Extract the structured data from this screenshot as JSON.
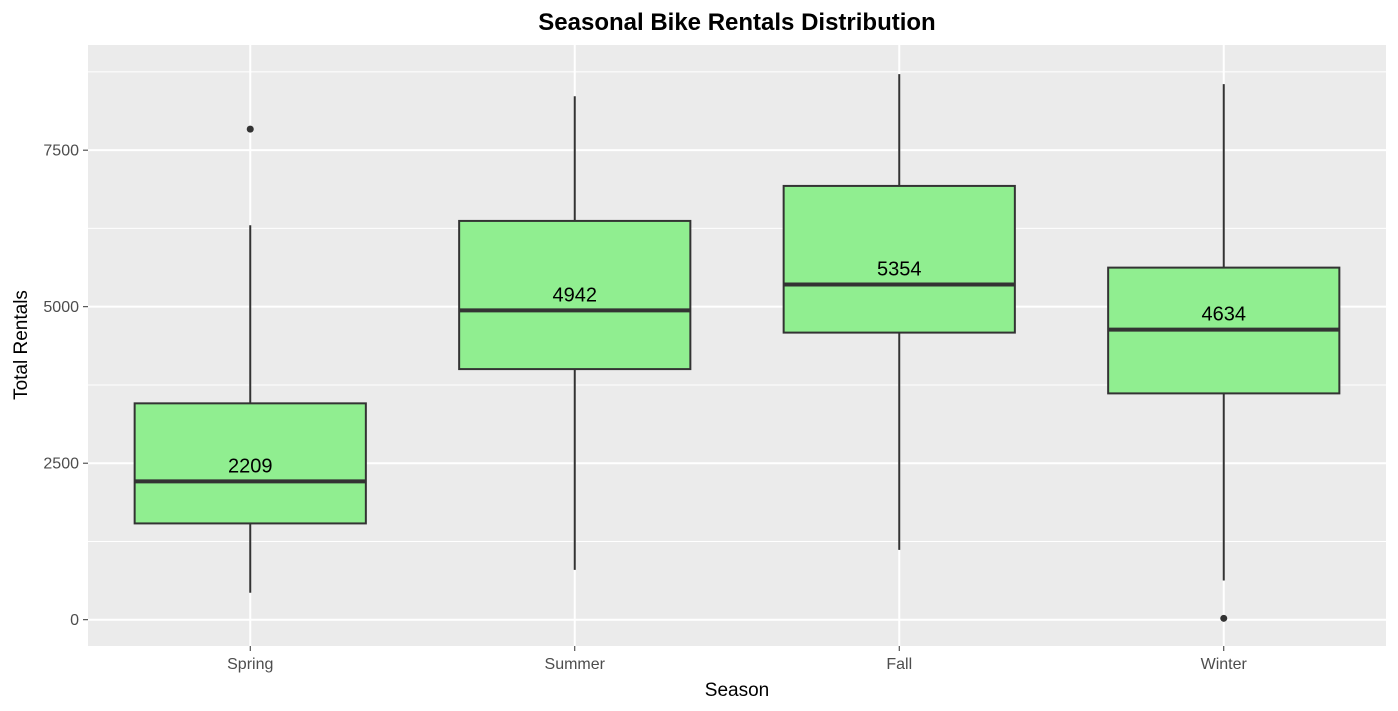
{
  "chart_data": {
    "type": "boxplot",
    "title": "Seasonal Bike Rentals Distribution",
    "xlabel": "Season",
    "ylabel": "Total Rentals",
    "categories": [
      "Spring",
      "Summer",
      "Fall",
      "Winter"
    ],
    "ylim": [
      -420,
      9180
    ],
    "y_ticks": [
      0,
      2500,
      5000,
      7500
    ],
    "y_tick_labels": [
      "0",
      "2500",
      "5000",
      "7500"
    ],
    "grid": true,
    "box_color": "#90ee90",
    "line_color": "#333333",
    "panel_background": "#ebebeb",
    "grid_color": "#ffffff",
    "boxes": [
      {
        "category": "Spring",
        "min": 431,
        "q1": 1538,
        "median": 2209,
        "q3": 3456,
        "max": 6300,
        "outliers": [
          7836
        ],
        "median_label": "2209"
      },
      {
        "category": "Summer",
        "min": 795,
        "q1": 4003,
        "median": 4942,
        "q3": 6370,
        "max": 8362,
        "outliers": [],
        "median_label": "4942"
      },
      {
        "category": "Fall",
        "min": 1115,
        "q1": 4586,
        "median": 5354,
        "q3": 6929,
        "max": 8714,
        "outliers": [],
        "median_label": "5354"
      },
      {
        "category": "Winter",
        "min": 627,
        "q1": 3615,
        "median": 4634,
        "q3": 5624,
        "max": 8555,
        "outliers": [
          22
        ],
        "median_label": "4634"
      }
    ]
  }
}
